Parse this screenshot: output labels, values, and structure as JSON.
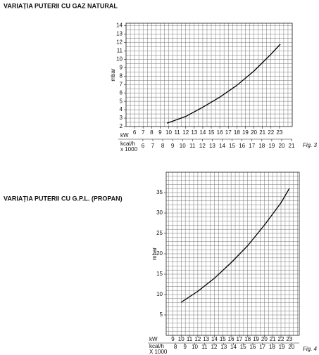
{
  "chart_data": [
    {
      "type": "line",
      "title": "VARIAȚIA PUTERII CU GAZ NATURAL",
      "y_label": "mbar",
      "x_label": "kW",
      "x2_label": "kcal/h",
      "x2_sublabel": "x 1000",
      "figure": "Fig. 3",
      "x": [
        9.8,
        12,
        14,
        16,
        18,
        20,
        22,
        23.1
      ],
      "values": [
        2.4,
        3.2,
        4.3,
        5.5,
        6.9,
        8.6,
        10.6,
        11.8
      ],
      "color": "#000000",
      "xlim": [
        5,
        24.5
      ],
      "xticks": [
        6,
        7,
        8,
        9,
        10,
        11,
        12,
        13,
        14,
        15,
        16,
        17,
        18,
        19,
        20,
        21,
        22,
        23
      ],
      "x2lim": [
        4.3,
        21.07
      ],
      "x2ticks": [
        6,
        7,
        8,
        9,
        10,
        11,
        12,
        13,
        14,
        15,
        16,
        17,
        18,
        19,
        20,
        21
      ],
      "ylim": [
        2,
        14.3
      ],
      "yticks": [
        2,
        3,
        4,
        5,
        6,
        7,
        8,
        9,
        10,
        11,
        12,
        13,
        14
      ],
      "grid": true,
      "grid_step": {
        "x": 0.5,
        "y": 0.5
      }
    },
    {
      "type": "line",
      "title": "VARIAȚIA PUTERII CU G.P.L. (PROPAN)",
      "y_label": "mbar",
      "x_label": "kW",
      "x2_label": "kcal/h",
      "x2_sublabel": "X 1000",
      "figure": "Fig. 4",
      "x": [
        10,
        12,
        14,
        16,
        18,
        20,
        22,
        23
      ],
      "values": [
        8.1,
        10.8,
        14,
        17.8,
        22,
        27,
        32.5,
        36
      ],
      "color": "#000000",
      "xlim": [
        8.2,
        24.2
      ],
      "xticks": [
        9,
        10,
        11,
        12,
        13,
        14,
        15,
        16,
        17,
        18,
        19,
        20,
        21,
        22,
        23
      ],
      "x2lim": [
        7.05,
        20.81
      ],
      "x2ticks": [
        8,
        9,
        10,
        11,
        12,
        13,
        14,
        15,
        16,
        17,
        18,
        19,
        20
      ],
      "ylim": [
        0,
        40
      ],
      "yticks": [
        5,
        10,
        15,
        20,
        25,
        30,
        35
      ],
      "grid": true,
      "grid_step": {
        "x": 0.5,
        "y": 1
      }
    }
  ]
}
